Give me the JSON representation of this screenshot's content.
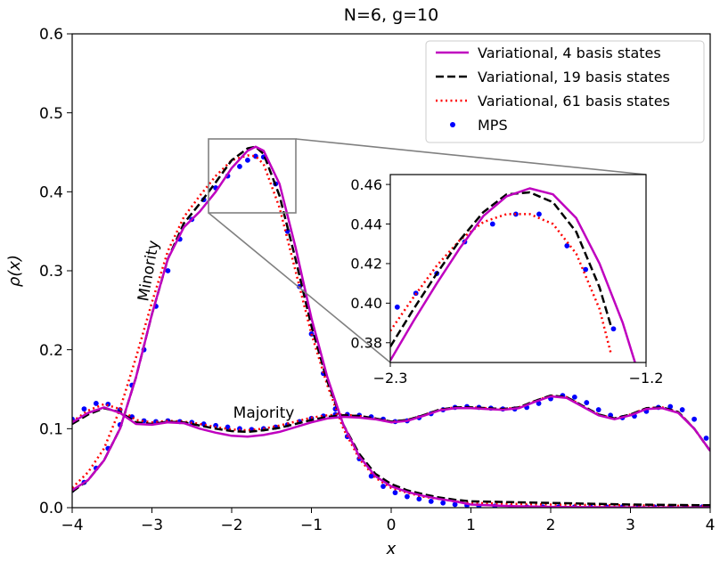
{
  "chart_data": [
    {
      "type": "line",
      "title": "N=6, g=10",
      "xlabel": "x",
      "ylabel": "ρ(x)",
      "xlim": [
        -4,
        4
      ],
      "ylim": [
        0,
        0.6
      ],
      "xticks": [
        -4,
        -3,
        -2,
        -1,
        0,
        1,
        2,
        3,
        4
      ],
      "xtick_labels": [
        "−4",
        "−3",
        "−2",
        "−1",
        "0",
        "1",
        "2",
        "3",
        "4"
      ],
      "yticks": [
        0.0,
        0.1,
        0.2,
        0.3,
        0.4,
        0.5,
        0.6
      ],
      "ytick_labels": [
        "0.0",
        "0.1",
        "0.2",
        "0.3",
        "0.4",
        "0.5",
        "0.6"
      ],
      "grid": false,
      "legend_position": "top-right",
      "annotations": [
        {
          "text": "Minority",
          "x": -3.05,
          "y": 0.27,
          "rotation": -80
        },
        {
          "text": "Majority",
          "x": -1.45,
          "y": 0.118,
          "rotation": 0
        }
      ],
      "colors": {
        "v4": "#bf00bf",
        "v19": "#000000",
        "v61": "#ff0000",
        "mps": "#0000ff"
      },
      "series": [
        {
          "name": "Variational, 4 basis states",
          "group": "minority",
          "style": "solid",
          "x": [
            -4,
            -3.8,
            -3.6,
            -3.4,
            -3.2,
            -3.0,
            -2.8,
            -2.6,
            -2.4,
            -2.2,
            -2.0,
            -1.8,
            -1.7,
            -1.6,
            -1.4,
            -1.2,
            -1.0,
            -0.8,
            -0.6,
            -0.4,
            -0.2,
            0,
            0.2,
            0.4,
            0.6,
            0.8,
            1.0,
            1.5,
            2,
            3,
            4
          ],
          "y": [
            0.022,
            0.035,
            0.06,
            0.1,
            0.165,
            0.245,
            0.315,
            0.355,
            0.375,
            0.4,
            0.43,
            0.452,
            0.457,
            0.452,
            0.41,
            0.33,
            0.24,
            0.165,
            0.105,
            0.065,
            0.04,
            0.027,
            0.02,
            0.015,
            0.011,
            0.008,
            0.004,
            0.002,
            0.001,
            0.0005,
            0.0002
          ]
        },
        {
          "name": "Variational, 19 basis states",
          "group": "minority",
          "style": "dashed",
          "x": [
            -4,
            -3.8,
            -3.6,
            -3.4,
            -3.2,
            -3.0,
            -2.8,
            -2.6,
            -2.4,
            -2.2,
            -2.0,
            -1.8,
            -1.7,
            -1.6,
            -1.4,
            -1.2,
            -1.0,
            -0.8,
            -0.6,
            -0.4,
            -0.2,
            0,
            0.2,
            0.4,
            0.6,
            0.8,
            1.0,
            1.5,
            2,
            3,
            4
          ],
          "y": [
            0.02,
            0.035,
            0.06,
            0.1,
            0.165,
            0.245,
            0.315,
            0.36,
            0.385,
            0.412,
            0.44,
            0.455,
            0.457,
            0.448,
            0.395,
            0.315,
            0.23,
            0.16,
            0.105,
            0.068,
            0.043,
            0.03,
            0.022,
            0.017,
            0.013,
            0.01,
            0.008,
            0.007,
            0.006,
            0.004,
            0.003
          ]
        },
        {
          "name": "Variational, 61 basis states",
          "group": "minority",
          "style": "dotted",
          "x": [
            -4,
            -3.8,
            -3.6,
            -3.4,
            -3.2,
            -3.0,
            -2.8,
            -2.6,
            -2.4,
            -2.2,
            -2.0,
            -1.8,
            -1.7,
            -1.6,
            -1.4,
            -1.2,
            -1.0,
            -0.8,
            -0.6,
            -0.4,
            -0.2,
            0,
            0.2,
            0.4,
            0.6,
            0.8,
            1.0,
            1.5,
            2,
            3,
            4
          ],
          "y": [
            0.025,
            0.045,
            0.075,
            0.125,
            0.19,
            0.26,
            0.325,
            0.368,
            0.395,
            0.42,
            0.44,
            0.446,
            0.445,
            0.435,
            0.38,
            0.3,
            0.22,
            0.155,
            0.1,
            0.062,
            0.038,
            0.025,
            0.019,
            0.014,
            0.011,
            0.008,
            0.006,
            0.005,
            0.004,
            0.003,
            0.002
          ]
        },
        {
          "name": "MPS",
          "group": "minority",
          "style": "markers",
          "x": [
            -4,
            -3.85,
            -3.7,
            -3.55,
            -3.4,
            -3.25,
            -3.1,
            -2.95,
            -2.8,
            -2.65,
            -2.5,
            -2.35,
            -2.2,
            -2.05,
            -1.9,
            -1.8,
            -1.7,
            -1.6,
            -1.45,
            -1.3,
            -1.15,
            -1.0,
            -0.85,
            -0.7,
            -0.55,
            -0.4,
            -0.25,
            -0.1,
            0.05,
            0.2,
            0.35,
            0.5,
            0.65,
            0.8,
            0.95,
            1.1,
            1.3,
            1.5,
            1.7,
            1.9,
            2.1,
            2.3,
            2.5,
            2.7,
            2.9,
            3.1,
            3.3,
            3.5,
            3.7,
            3.9
          ],
          "y": [
            0.022,
            0.032,
            0.05,
            0.075,
            0.105,
            0.155,
            0.2,
            0.255,
            0.3,
            0.34,
            0.365,
            0.39,
            0.405,
            0.42,
            0.432,
            0.44,
            0.445,
            0.444,
            0.41,
            0.35,
            0.28,
            0.22,
            0.17,
            0.125,
            0.09,
            0.062,
            0.04,
            0.027,
            0.019,
            0.014,
            0.011,
            0.008,
            0.006,
            0.004,
            0.003,
            0.002,
            0.002,
            0.001,
            0.001,
            0.001,
            0.001,
            0.001,
            0.001,
            0.001,
            0.001,
            0.001,
            0.001,
            0.001,
            0.001,
            0.001
          ]
        },
        {
          "name": "Variational, 4 basis states",
          "group": "majority",
          "style": "solid",
          "x": [
            -4,
            -3.8,
            -3.6,
            -3.4,
            -3.2,
            -3.0,
            -2.8,
            -2.6,
            -2.4,
            -2.2,
            -2.0,
            -1.8,
            -1.6,
            -1.4,
            -1.2,
            -1.0,
            -0.8,
            -0.6,
            -0.4,
            -0.2,
            0,
            0.2,
            0.4,
            0.6,
            0.8,
            1.0,
            1.2,
            1.4,
            1.6,
            1.8,
            2.0,
            2.2,
            2.4,
            2.6,
            2.8,
            3.0,
            3.2,
            3.4,
            3.6,
            3.8,
            4.0
          ],
          "y": [
            0.108,
            0.12,
            0.127,
            0.12,
            0.106,
            0.105,
            0.108,
            0.107,
            0.1,
            0.095,
            0.091,
            0.09,
            0.092,
            0.096,
            0.102,
            0.108,
            0.113,
            0.115,
            0.114,
            0.112,
            0.108,
            0.11,
            0.116,
            0.123,
            0.126,
            0.126,
            0.125,
            0.124,
            0.126,
            0.134,
            0.141,
            0.139,
            0.128,
            0.117,
            0.112,
            0.117,
            0.125,
            0.126,
            0.12,
            0.1,
            0.072
          ]
        },
        {
          "name": "Variational, 19 basis states",
          "group": "majority",
          "style": "dashed",
          "x": [
            -4,
            -3.8,
            -3.6,
            -3.4,
            -3.2,
            -3.0,
            -2.8,
            -2.6,
            -2.4,
            -2.2,
            -2.0,
            -1.8,
            -1.6,
            -1.4,
            -1.2,
            -1.0,
            -0.8,
            -0.6,
            -0.4,
            -0.2,
            0,
            0.2,
            0.4,
            0.6,
            0.8,
            1.0,
            1.2,
            1.4,
            1.6,
            1.8,
            2.0,
            2.2,
            2.4,
            2.6,
            2.8,
            3.0,
            3.2,
            3.4,
            3.6,
            3.8,
            4.0
          ],
          "y": [
            0.106,
            0.118,
            0.126,
            0.121,
            0.108,
            0.106,
            0.109,
            0.108,
            0.104,
            0.1,
            0.097,
            0.096,
            0.098,
            0.101,
            0.106,
            0.111,
            0.115,
            0.117,
            0.116,
            0.113,
            0.109,
            0.111,
            0.117,
            0.124,
            0.127,
            0.127,
            0.126,
            0.125,
            0.127,
            0.135,
            0.142,
            0.14,
            0.129,
            0.118,
            0.113,
            0.118,
            0.126,
            0.127,
            0.121,
            0.1,
            0.072
          ]
        },
        {
          "name": "Variational, 61 basis states",
          "group": "majority",
          "style": "dotted",
          "x": [
            -4,
            -3.8,
            -3.6,
            -3.4,
            -3.2,
            -3.0,
            -2.8,
            -2.6,
            -2.4,
            -2.2,
            -2.0,
            -1.8,
            -1.6,
            -1.4,
            -1.2,
            -1.0,
            -0.8,
            -0.6,
            -0.4,
            -0.2,
            0,
            0.2,
            0.4,
            0.6,
            0.8,
            1.0,
            1.2,
            1.4,
            1.6,
            1.8,
            2.0,
            2.2,
            2.4,
            2.6,
            2.8,
            3.0,
            3.2,
            3.4,
            3.6,
            3.8,
            4.0
          ],
          "y": [
            0.109,
            0.123,
            0.131,
            0.125,
            0.111,
            0.108,
            0.11,
            0.109,
            0.106,
            0.102,
            0.099,
            0.098,
            0.1,
            0.104,
            0.109,
            0.114,
            0.117,
            0.118,
            0.116,
            0.113,
            0.109,
            0.111,
            0.117,
            0.124,
            0.127,
            0.127,
            0.126,
            0.125,
            0.127,
            0.135,
            0.142,
            0.14,
            0.129,
            0.118,
            0.113,
            0.118,
            0.126,
            0.127,
            0.121,
            0.1,
            0.072
          ]
        },
        {
          "name": "MPS",
          "group": "majority",
          "style": "markers",
          "x": [
            -4,
            -3.85,
            -3.7,
            -3.55,
            -3.4,
            -3.25,
            -3.1,
            -2.95,
            -2.8,
            -2.65,
            -2.5,
            -2.35,
            -2.2,
            -2.05,
            -1.9,
            -1.75,
            -1.6,
            -1.45,
            -1.3,
            -1.15,
            -1.0,
            -0.85,
            -0.7,
            -0.55,
            -0.4,
            -0.25,
            -0.1,
            0.05,
            0.2,
            0.35,
            0.5,
            0.65,
            0.8,
            0.95,
            1.1,
            1.25,
            1.4,
            1.55,
            1.7,
            1.85,
            2.0,
            2.15,
            2.3,
            2.45,
            2.6,
            2.75,
            2.9,
            3.05,
            3.2,
            3.35,
            3.5,
            3.65,
            3.8,
            3.95
          ],
          "y": [
            0.112,
            0.125,
            0.132,
            0.131,
            0.124,
            0.115,
            0.11,
            0.109,
            0.11,
            0.109,
            0.108,
            0.106,
            0.104,
            0.102,
            0.1,
            0.099,
            0.1,
            0.102,
            0.105,
            0.109,
            0.113,
            0.116,
            0.118,
            0.118,
            0.117,
            0.115,
            0.112,
            0.109,
            0.11,
            0.114,
            0.119,
            0.124,
            0.127,
            0.128,
            0.127,
            0.126,
            0.125,
            0.125,
            0.127,
            0.132,
            0.138,
            0.142,
            0.14,
            0.133,
            0.124,
            0.117,
            0.114,
            0.116,
            0.122,
            0.127,
            0.128,
            0.124,
            0.112,
            0.088
          ]
        }
      ]
    },
    {
      "type": "line",
      "title": "",
      "xlim": [
        -2.3,
        -1.2
      ],
      "ylim": [
        0.37,
        0.465
      ],
      "xticks": [
        -2.3,
        -1.2
      ],
      "xtick_labels": [
        "−2.3",
        "−1.2"
      ],
      "yticks": [
        0.38,
        0.4,
        0.42,
        0.44,
        0.46
      ],
      "ytick_labels": [
        "0.38",
        "0.40",
        "0.42",
        "0.44",
        "0.46"
      ],
      "grid": false,
      "series": [
        {
          "name": "Variational, 4 basis states",
          "style": "solid",
          "x": [
            -2.3,
            -2.2,
            -2.1,
            -2.0,
            -1.9,
            -1.8,
            -1.7,
            -1.6,
            -1.5,
            -1.4,
            -1.3,
            -1.2
          ],
          "y": [
            0.371,
            0.391,
            0.41,
            0.428,
            0.444,
            0.454,
            0.458,
            0.455,
            0.443,
            0.42,
            0.39,
            0.352
          ]
        },
        {
          "name": "Variational, 19 basis states",
          "style": "dashed",
          "x": [
            -2.3,
            -2.2,
            -2.1,
            -2.0,
            -1.9,
            -1.8,
            -1.7,
            -1.6,
            -1.5,
            -1.4,
            -1.35
          ],
          "y": [
            0.378,
            0.397,
            0.415,
            0.432,
            0.446,
            0.455,
            0.456,
            0.451,
            0.436,
            0.408,
            0.388
          ]
        },
        {
          "name": "Variational, 61 basis states",
          "style": "dotted",
          "x": [
            -2.3,
            -2.2,
            -2.1,
            -2.0,
            -1.9,
            -1.8,
            -1.7,
            -1.6,
            -1.5,
            -1.4,
            -1.35
          ],
          "y": [
            0.386,
            0.403,
            0.419,
            0.432,
            0.441,
            0.445,
            0.445,
            0.44,
            0.425,
            0.397,
            0.374
          ]
        },
        {
          "name": "MPS",
          "style": "markers",
          "x": [
            -2.27,
            -2.19,
            -2.1,
            -1.98,
            -1.86,
            -1.76,
            -1.66,
            -1.54,
            -1.46,
            -1.34
          ],
          "y": [
            0.398,
            0.405,
            0.415,
            0.431,
            0.44,
            0.445,
            0.445,
            0.429,
            0.417,
            0.387
          ]
        }
      ]
    }
  ]
}
